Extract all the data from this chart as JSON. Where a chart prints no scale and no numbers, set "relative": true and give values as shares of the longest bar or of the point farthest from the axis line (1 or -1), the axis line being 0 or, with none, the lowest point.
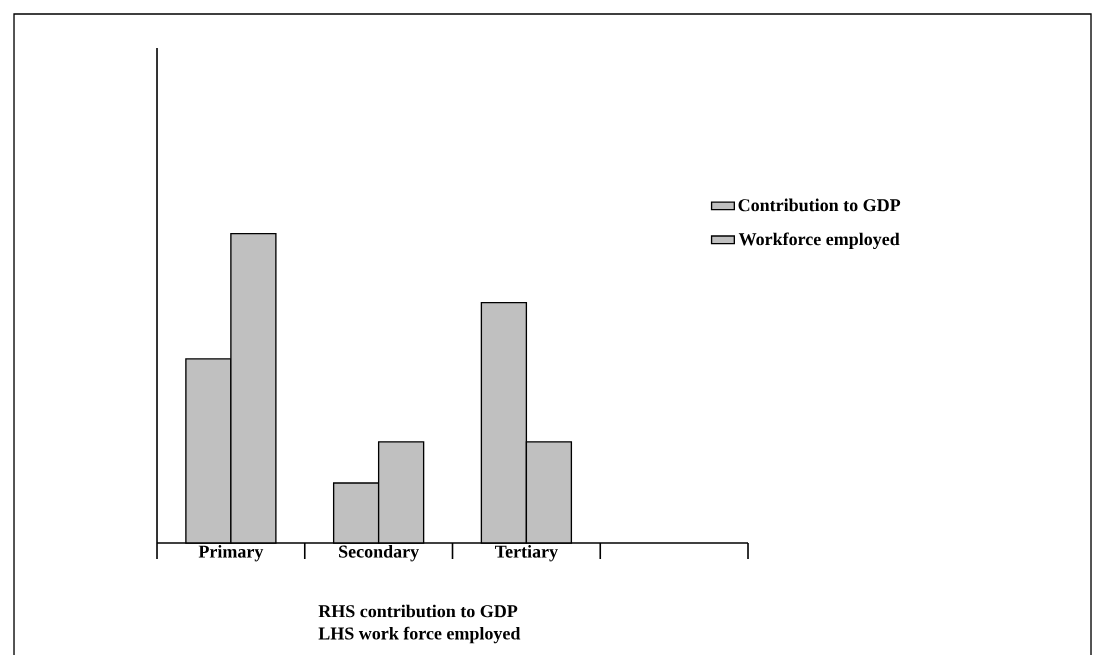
{
  "chart_data": {
    "type": "bar",
    "relative": true,
    "categories": [
      "Primary",
      "Secondary",
      "Tertiary",
      null
    ],
    "series": [
      {
        "name": "Contribution to GDP",
        "color": "#c0c0c0",
        "values": [
          0.595,
          0.194,
          0.777,
          null
        ]
      },
      {
        "name": "Workforce employed",
        "color": "#c0c0c0",
        "values": [
          1,
          0.327,
          0.327,
          null
        ]
      }
    ],
    "legend": "right",
    "annotations": [
      "RHS contribution to GDP",
      "LHS work force employed"
    ]
  }
}
